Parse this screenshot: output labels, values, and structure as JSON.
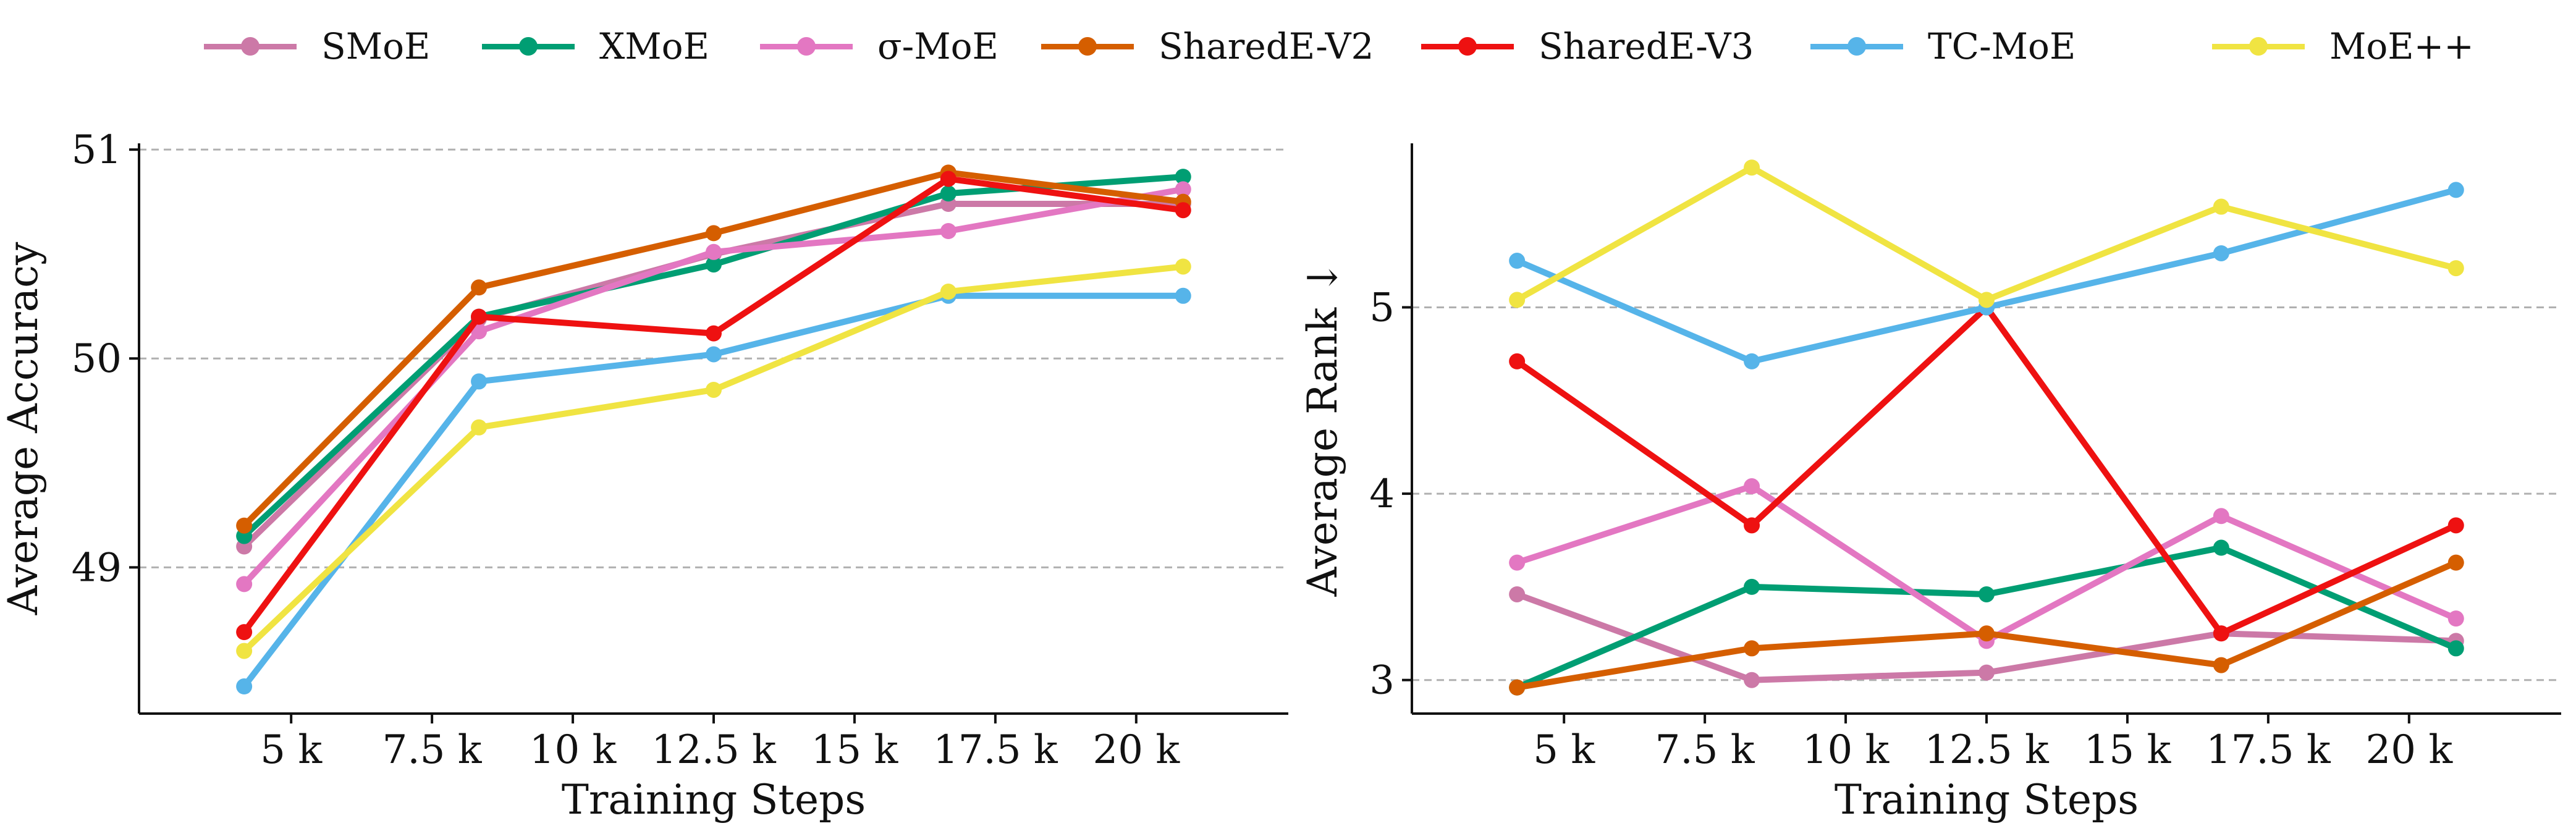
{
  "legend": [
    {
      "label": "SMoE",
      "color": "#cc79a7"
    },
    {
      "label": "XMoE",
      "color": "#009e73"
    },
    {
      "label": "σ-MoE",
      "color": "#e377c2"
    },
    {
      "label": "SharedE-V2",
      "color": "#d55e00"
    },
    {
      "label": "SharedE-V3",
      "color": "#ee1111"
    },
    {
      "label": "TC-MoE",
      "color": "#56b4e9"
    },
    {
      "label": "MoE++",
      "color": "#f0e442"
    }
  ],
  "chart_data": [
    {
      "type": "line",
      "xlabel": "Training Steps",
      "ylabel": "Average Accuracy",
      "xlim": [
        2300,
        22700
      ],
      "ylim": [
        48.3,
        51.03
      ],
      "xticks": [
        5000,
        7500,
        10000,
        12500,
        15000,
        17500,
        20000
      ],
      "xtick_labels": [
        "5 k",
        "7.5 k",
        "10 k",
        "12.5 k",
        "15 k",
        "17.5 k",
        "20 k"
      ],
      "yticks": [
        49,
        50,
        51
      ],
      "ytick_labels": [
        "49",
        "50",
        "51"
      ],
      "grid": "horizontal dashed",
      "x": [
        4166,
        8333,
        12500,
        16666,
        20833
      ],
      "series": [
        {
          "name": "SMoE",
          "values": [
            49.1,
            50.19,
            50.5,
            50.74,
            50.74
          ]
        },
        {
          "name": "XMoE",
          "values": [
            49.15,
            50.2,
            50.45,
            50.79,
            50.87
          ]
        },
        {
          "name": "σ-MoE",
          "values": [
            48.92,
            50.13,
            50.51,
            50.61,
            50.81
          ]
        },
        {
          "name": "SharedE-V2",
          "values": [
            49.2,
            50.34,
            50.6,
            50.89,
            50.75
          ]
        },
        {
          "name": "SharedE-V3",
          "values": [
            48.69,
            50.2,
            50.12,
            50.86,
            50.71
          ]
        },
        {
          "name": "TC-MoE",
          "values": [
            48.43,
            49.89,
            50.02,
            50.3,
            50.3
          ]
        },
        {
          "name": "MoE++",
          "values": [
            48.6,
            49.67,
            49.85,
            50.32,
            50.44
          ]
        }
      ]
    },
    {
      "type": "line",
      "xlabel": "Training Steps",
      "ylabel": "Average Rank ↓",
      "xlim": [
        2300,
        22700
      ],
      "ylim": [
        2.82,
        5.88
      ],
      "xticks": [
        5000,
        7500,
        10000,
        12500,
        15000,
        17500,
        20000
      ],
      "xtick_labels": [
        "5 k",
        "7.5 k",
        "10 k",
        "12.5 k",
        "15 k",
        "17.5 k",
        "20 k"
      ],
      "yticks": [
        3,
        4,
        5
      ],
      "ytick_labels": [
        "3",
        "4",
        "5"
      ],
      "grid": "horizontal dashed",
      "x": [
        4166,
        8333,
        12500,
        16666,
        20833
      ],
      "series": [
        {
          "name": "SMoE",
          "values": [
            3.46,
            3.0,
            3.04,
            3.25,
            3.21
          ]
        },
        {
          "name": "XMoE",
          "values": [
            2.96,
            3.5,
            3.46,
            3.71,
            3.17
          ]
        },
        {
          "name": "σ-MoE",
          "values": [
            3.63,
            4.04,
            3.21,
            3.88,
            3.33
          ]
        },
        {
          "name": "SharedE-V2",
          "values": [
            2.96,
            3.17,
            3.25,
            3.08,
            3.63
          ]
        },
        {
          "name": "SharedE-V3",
          "values": [
            4.71,
            3.83,
            5.0,
            3.25,
            3.83
          ]
        },
        {
          "name": "TC-MoE",
          "values": [
            5.25,
            4.71,
            5.0,
            5.29,
            5.63
          ]
        },
        {
          "name": "MoE++",
          "values": [
            5.04,
            5.75,
            5.04,
            5.54,
            5.21
          ]
        }
      ]
    }
  ]
}
